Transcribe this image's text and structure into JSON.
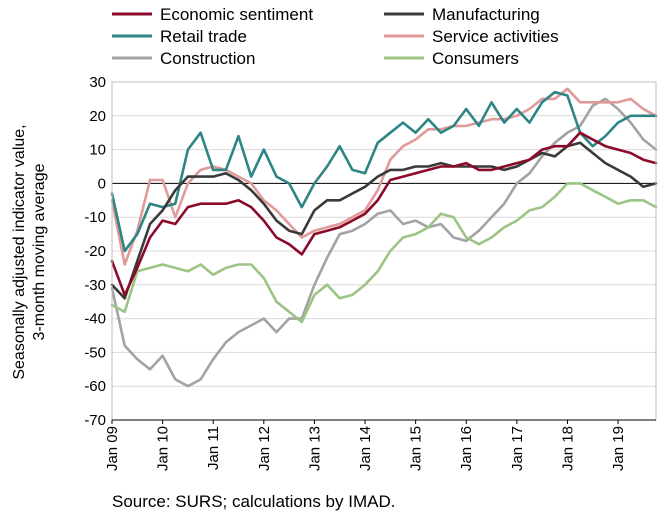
{
  "chart_data": {
    "type": "line",
    "ylabel": "Seasonally adjusted indicator value, 3-month moving average",
    "source": "Source: SURS; calculations by IMAD.",
    "ylim": [
      -70,
      30
    ],
    "yticks": [
      30,
      20,
      10,
      0,
      -10,
      -20,
      -30,
      -40,
      -50,
      -60,
      -70
    ],
    "xlim": [
      "2009-01",
      "2019-10"
    ],
    "xtick_labels": [
      "Jan 09",
      "Jan 10",
      "Jan 11",
      "Jan 12",
      "Jan 13",
      "Jan 14",
      "Jan 15",
      "Jan 16",
      "Jan 17",
      "Jan 18",
      "Jan 19"
    ],
    "grid": "horizontal",
    "legend": "top, two columns",
    "x_points": [
      "2009-01",
      "2009-04",
      "2009-07",
      "2009-10",
      "2010-01",
      "2010-04",
      "2010-07",
      "2010-10",
      "2011-01",
      "2011-04",
      "2011-07",
      "2011-10",
      "2012-01",
      "2012-04",
      "2012-07",
      "2012-10",
      "2013-01",
      "2013-04",
      "2013-07",
      "2013-10",
      "2014-01",
      "2014-04",
      "2014-07",
      "2014-10",
      "2015-01",
      "2015-04",
      "2015-07",
      "2015-10",
      "2016-01",
      "2016-04",
      "2016-07",
      "2016-10",
      "2017-01",
      "2017-04",
      "2017-07",
      "2017-10",
      "2018-01",
      "2018-04",
      "2018-07",
      "2018-10",
      "2019-01",
      "2019-04",
      "2019-07",
      "2019-10"
    ],
    "series": [
      {
        "name": "Economic sentiment",
        "color": "#8b0a2a",
        "values": [
          -23,
          -33,
          -25,
          -16,
          -11,
          -12,
          -7,
          -6,
          -6,
          -6,
          -5,
          -7,
          -11,
          -16,
          -18,
          -21,
          -15,
          -14,
          -13,
          -11,
          -9,
          -5,
          1,
          2,
          3,
          4,
          5,
          5,
          6,
          4,
          4,
          5,
          6,
          7,
          10,
          11,
          11,
          15,
          13,
          11,
          10,
          9,
          7,
          6
        ]
      },
      {
        "name": "Manufacturing",
        "color": "#3a3a3a",
        "values": [
          -30,
          -34,
          -23,
          -12,
          -8,
          -2,
          2,
          2,
          2,
          3,
          1,
          -2,
          -6,
          -11,
          -14,
          -15,
          -8,
          -5,
          -5,
          -3,
          -1,
          2,
          4,
          4,
          5,
          5,
          6,
          5,
          5,
          5,
          5,
          4,
          5,
          7,
          9,
          8,
          11,
          12,
          9,
          6,
          4,
          2,
          -1,
          0
        ]
      },
      {
        "name": "Retail trade",
        "color": "#2f8585",
        "values": [
          -3,
          -20,
          -15,
          -6,
          -7,
          -6,
          10,
          15,
          4,
          4,
          14,
          2,
          10,
          2,
          0,
          -7,
          0,
          5,
          11,
          4,
          3,
          12,
          15,
          18,
          15,
          19,
          15,
          17,
          22,
          17,
          24,
          18,
          22,
          18,
          24,
          27,
          26,
          15,
          11,
          14,
          18,
          20,
          20,
          20
        ]
      },
      {
        "name": "Service activities",
        "color": "#e09a9a",
        "values": [
          -5,
          -24,
          -14,
          1,
          1,
          -10,
          0,
          4,
          5,
          4,
          2,
          0,
          -5,
          -8,
          -12,
          -16,
          -14,
          -13,
          -12,
          -10,
          -8,
          -2,
          7,
          11,
          13,
          16,
          16,
          17,
          17,
          18,
          19,
          19,
          20,
          22,
          25,
          25,
          28,
          24,
          24,
          24,
          24,
          25,
          22,
          20
        ]
      },
      {
        "name": "Construction",
        "color": "#a3a3a3",
        "values": [
          -31,
          -48,
          -52,
          -55,
          -51,
          -58,
          -60,
          -58,
          -52,
          -47,
          -44,
          -42,
          -40,
          -44,
          -40,
          -40,
          -30,
          -22,
          -15,
          -14,
          -12,
          -9,
          -8,
          -12,
          -11,
          -13,
          -12,
          -16,
          -17,
          -14,
          -10,
          -6,
          0,
          3,
          8,
          12,
          15,
          17,
          23,
          25,
          22,
          18,
          13,
          10
        ]
      },
      {
        "name": "Consumers",
        "color": "#9cc484",
        "values": [
          -36,
          -38,
          -26,
          -25,
          -24,
          -25,
          -26,
          -24,
          -27,
          -25,
          -24,
          -24,
          -28,
          -35,
          -38,
          -41,
          -33,
          -30,
          -34,
          -33,
          -30,
          -26,
          -20,
          -16,
          -15,
          -13,
          -9,
          -10,
          -16,
          -18,
          -16,
          -13,
          -11,
          -8,
          -7,
          -4,
          0,
          0,
          -2,
          -4,
          -6,
          -5,
          -5,
          -7
        ]
      }
    ]
  }
}
